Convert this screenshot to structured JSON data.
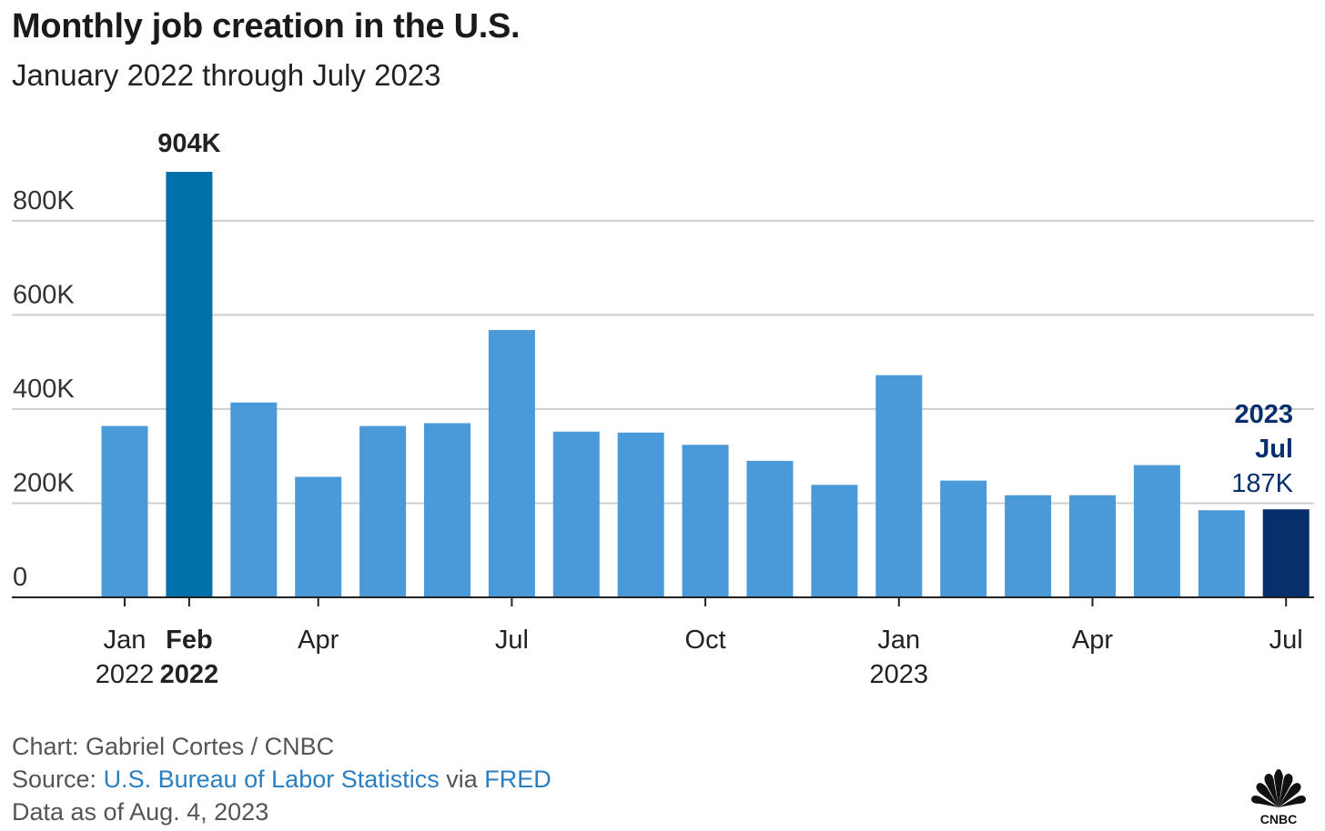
{
  "title": "Monthly job creation in the U.S.",
  "subtitle": "January 2022 through July 2023",
  "chart_data": {
    "type": "bar",
    "categories": [
      "Jan 2022",
      "Feb 2022",
      "Mar 2022",
      "Apr 2022",
      "May 2022",
      "Jun 2022",
      "Jul 2022",
      "Aug 2022",
      "Sep 2022",
      "Oct 2022",
      "Nov 2022",
      "Dec 2022",
      "Jan 2023",
      "Feb 2023",
      "Mar 2023",
      "Apr 2023",
      "May 2023",
      "Jun 2023",
      "Jul 2023"
    ],
    "values": [
      364,
      904,
      414,
      256,
      364,
      370,
      568,
      352,
      350,
      324,
      290,
      239,
      472,
      248,
      217,
      217,
      281,
      185,
      187
    ],
    "ylim": [
      0,
      904
    ],
    "y_ticks": [
      {
        "value": 0,
        "label": "0"
      },
      {
        "value": 200,
        "label": "200K"
      },
      {
        "value": 400,
        "label": "400K"
      },
      {
        "value": 600,
        "label": "600K"
      },
      {
        "value": 800,
        "label": "800K"
      }
    ],
    "x_ticks": [
      {
        "index": 0,
        "line1": "Jan",
        "line2": "2022",
        "bold": false
      },
      {
        "index": 1,
        "line1": "Feb",
        "line2": "2022",
        "bold": true
      },
      {
        "index": 3,
        "line1": "Apr",
        "line2": "",
        "bold": false
      },
      {
        "index": 6,
        "line1": "Jul",
        "line2": "",
        "bold": false
      },
      {
        "index": 9,
        "line1": "Oct",
        "line2": "",
        "bold": false
      },
      {
        "index": 12,
        "line1": "Jan",
        "line2": "2023",
        "bold": false
      },
      {
        "index": 15,
        "line1": "Apr",
        "line2": "",
        "bold": false
      },
      {
        "index": 18,
        "line1": "Jul",
        "line2": "",
        "bold": false
      }
    ],
    "annotations": {
      "peak": {
        "index": 1,
        "label": "904K"
      },
      "latest": {
        "index": 18,
        "line1": "2023",
        "line2": "Jul",
        "line3": "187K"
      }
    },
    "grid": true,
    "colors": {
      "default": "#4a99d8",
      "highlight": "#0070aa",
      "latest": "#062f6b",
      "grid": "#cfcfcf",
      "axis": "#222222"
    }
  },
  "footer": {
    "credit": "Chart: Gabriel Cortes / CNBC",
    "source_prefix": "Source: ",
    "source_link": "U.S. Bureau of Labor Statistics",
    "source_mid": " via ",
    "source_link2": "FRED",
    "date_note": "Data as of Aug. 4, 2023"
  },
  "logo": {
    "text": "CNBC",
    "icon": "peacock-icon"
  }
}
